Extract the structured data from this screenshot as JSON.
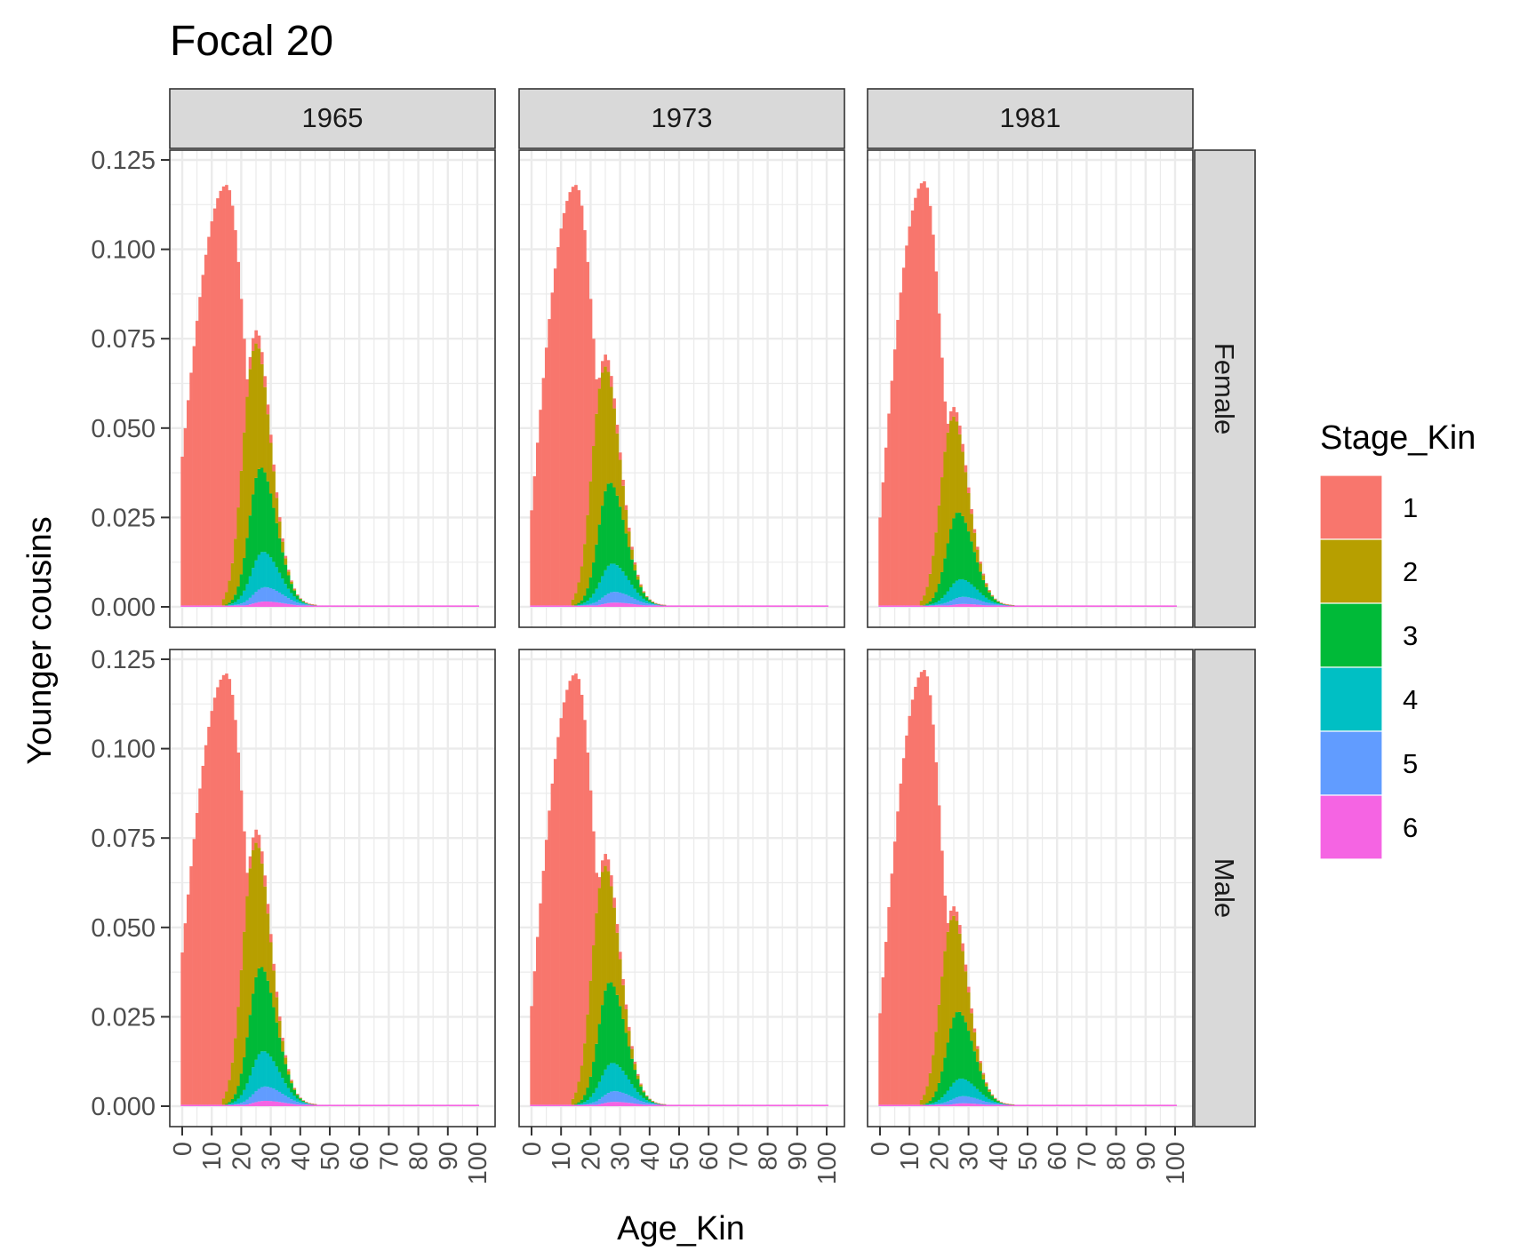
{
  "chart_data": {
    "type": "bar",
    "title": "Focal 20",
    "xlabel": "Age_Kin",
    "ylabel": "Younger cousins",
    "facet_columns": [
      "1965",
      "1973",
      "1981"
    ],
    "facet_rows": [
      "Female",
      "Male"
    ],
    "x_ticks": [
      0,
      10,
      20,
      30,
      40,
      50,
      60,
      70,
      80,
      90,
      100
    ],
    "y_ticks": [
      "0.000",
      "0.025",
      "0.050",
      "0.075",
      "0.100",
      "0.125"
    ],
    "xlim": [
      0,
      100
    ],
    "ylim": [
      0,
      0.125
    ],
    "stacking": "stacked",
    "grid": true,
    "legend": {
      "title": "Stage_Kin",
      "position": "right",
      "entries": [
        "1",
        "2",
        "3",
        "4",
        "5",
        "6"
      ]
    },
    "colors": {
      "1": "#F8766D",
      "2": "#B79F00",
      "3": "#00BA38",
      "4": "#00BFC4",
      "5": "#619CFF",
      "6": "#F564E3"
    },
    "stage1_peak_x": [
      15,
      15,
      15
    ],
    "totals_peak_by_panel": {
      "Female": [
        0.118,
        0.118,
        0.119
      ],
      "Male": [
        0.121,
        0.121,
        0.122
      ]
    },
    "totals_at_age0_by_panel": {
      "Female": [
        0.042,
        0.027,
        0.025
      ],
      "Male": [
        0.043,
        0.028,
        0.026
      ]
    },
    "stage_peaks_by_year": {
      "1965": {
        "2": 0.041,
        "3": 0.024,
        "4": 0.01,
        "5": 0.004,
        "6": 0.0015
      },
      "1973": {
        "2": 0.038,
        "3": 0.023,
        "4": 0.008,
        "5": 0.003,
        "6": 0.0012
      },
      "1981": {
        "2": 0.031,
        "3": 0.019,
        "4": 0.005,
        "5": 0.002,
        "6": 0.0008
      }
    },
    "stage_peak_x": {
      "2": 23,
      "3": 26,
      "4": 27,
      "5": 28,
      "6": 28
    }
  }
}
